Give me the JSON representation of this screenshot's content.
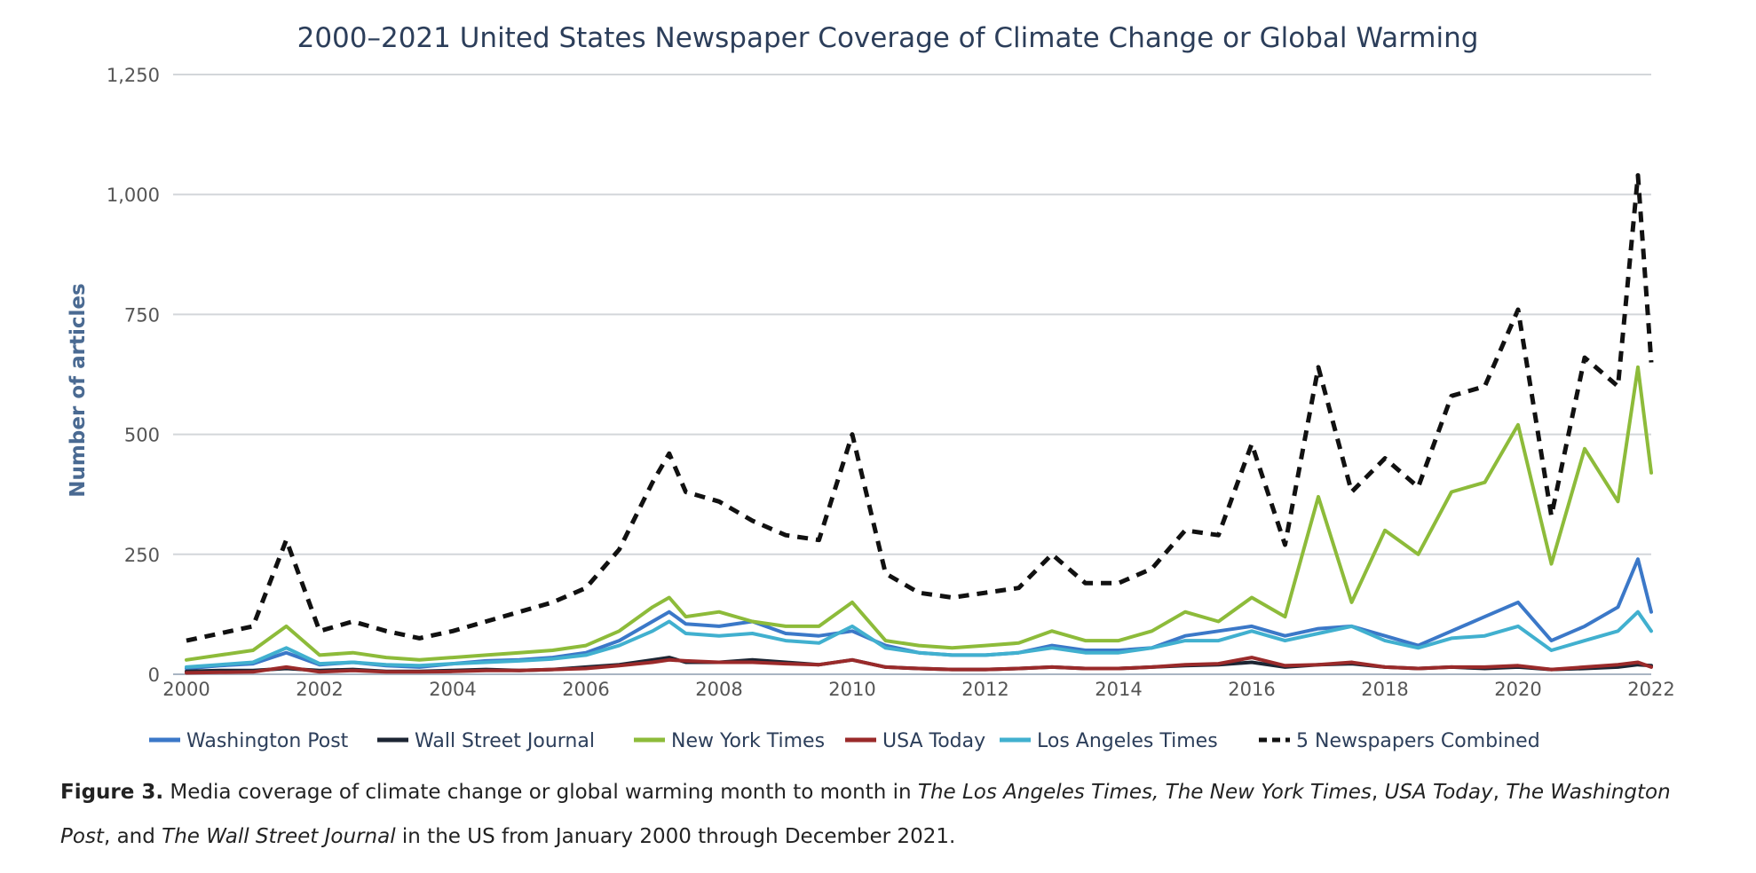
{
  "chart_data": {
    "type": "line",
    "title": "2000–2021 United States Newspaper Coverage of Climate Change or Global Warming",
    "xlabel": "",
    "ylabel": "Number of articles",
    "xlim": [
      2000,
      2022
    ],
    "ylim": [
      0,
      1250
    ],
    "x_ticks": [
      "2000",
      "2002",
      "2004",
      "2006",
      "2008",
      "2010",
      "2012",
      "2014",
      "2016",
      "2018",
      "2020",
      "2022"
    ],
    "y_ticks": [
      "0",
      "250",
      "500",
      "750",
      "1,000",
      "1,250"
    ],
    "grid": true,
    "legend_position": "bottom",
    "x": [
      2000,
      2000.5,
      2001,
      2001.5,
      2002,
      2002.5,
      2003,
      2003.5,
      2004,
      2004.5,
      2005,
      2005.5,
      2006,
      2006.5,
      2007,
      2007.25,
      2007.5,
      2008,
      2008.5,
      2009,
      2009.5,
      2010,
      2010.5,
      2011,
      2011.5,
      2012,
      2012.5,
      2013,
      2013.5,
      2014,
      2014.5,
      2015,
      2015.5,
      2016,
      2016.5,
      2017,
      2017.5,
      2018,
      2018.5,
      2019,
      2019.5,
      2020,
      2020.5,
      2021,
      2021.5,
      2021.8,
      2022
    ],
    "series": [
      {
        "name": "Washington Post",
        "color": "#3b78c8",
        "dash": "solid",
        "values": [
          12,
          18,
          22,
          45,
          20,
          25,
          18,
          15,
          22,
          28,
          30,
          35,
          45,
          70,
          110,
          130,
          105,
          100,
          110,
          85,
          80,
          90,
          60,
          45,
          40,
          40,
          45,
          60,
          50,
          50,
          55,
          80,
          90,
          100,
          80,
          95,
          100,
          80,
          60,
          90,
          120,
          150,
          70,
          100,
          140,
          240,
          130
        ]
      },
      {
        "name": "Wall Street Journal",
        "color": "#1c2533",
        "dash": "solid",
        "values": [
          6,
          8,
          8,
          12,
          8,
          10,
          6,
          6,
          8,
          10,
          8,
          10,
          15,
          20,
          30,
          35,
          25,
          25,
          30,
          25,
          20,
          30,
          15,
          12,
          10,
          10,
          12,
          15,
          12,
          12,
          15,
          18,
          20,
          25,
          15,
          20,
          22,
          15,
          12,
          15,
          12,
          15,
          10,
          12,
          15,
          20,
          18
        ]
      },
      {
        "name": "New York Times",
        "color": "#8dbb3a",
        "dash": "solid",
        "values": [
          30,
          40,
          50,
          100,
          40,
          45,
          35,
          30,
          35,
          40,
          45,
          50,
          60,
          90,
          140,
          160,
          120,
          130,
          110,
          100,
          100,
          150,
          70,
          60,
          55,
          60,
          65,
          90,
          70,
          70,
          90,
          130,
          110,
          160,
          120,
          370,
          150,
          300,
          250,
          380,
          400,
          520,
          230,
          470,
          360,
          640,
          420
        ]
      },
      {
        "name": "USA Today",
        "color": "#9a2a2a",
        "dash": "solid",
        "values": [
          3,
          4,
          5,
          15,
          5,
          8,
          5,
          5,
          6,
          8,
          8,
          10,
          12,
          18,
          25,
          30,
          28,
          25,
          25,
          22,
          20,
          30,
          15,
          12,
          10,
          10,
          12,
          15,
          12,
          12,
          15,
          20,
          22,
          35,
          18,
          20,
          25,
          15,
          12,
          15,
          15,
          18,
          10,
          15,
          20,
          25,
          15
        ]
      },
      {
        "name": "Los Angeles Times",
        "color": "#41b0cf",
        "dash": "solid",
        "values": [
          15,
          20,
          25,
          55,
          22,
          25,
          20,
          18,
          22,
          25,
          28,
          32,
          40,
          60,
          90,
          110,
          85,
          80,
          85,
          70,
          65,
          100,
          55,
          45,
          40,
          40,
          45,
          55,
          45,
          45,
          55,
          70,
          70,
          90,
          70,
          85,
          100,
          70,
          55,
          75,
          80,
          100,
          50,
          70,
          90,
          130,
          90
        ]
      },
      {
        "name": "5 Newspapers Combined",
        "color": "#111111",
        "dash": "dashed",
        "values": [
          70,
          85,
          100,
          280,
          90,
          110,
          90,
          75,
          90,
          110,
          130,
          150,
          180,
          260,
          400,
          460,
          380,
          360,
          320,
          290,
          280,
          500,
          210,
          170,
          160,
          170,
          180,
          250,
          190,
          190,
          220,
          300,
          290,
          480,
          270,
          640,
          380,
          450,
          390,
          580,
          600,
          760,
          330,
          660,
          600,
          1040,
          650
        ]
      }
    ]
  },
  "caption": {
    "label": "Figure 3.",
    "part1": " Media coverage of climate change or global warming month to month in ",
    "papers_a": "The Los Angeles Times, The New York Times",
    "sep1": ", ",
    "paper_usa": "USA Today",
    "sep2": ", ",
    "paper_wp": "The Washington Post",
    "sep3": ", and ",
    "paper_wsj": "The Wall Street Journal",
    "part2": " in the US from January 2000 through December 2021."
  }
}
